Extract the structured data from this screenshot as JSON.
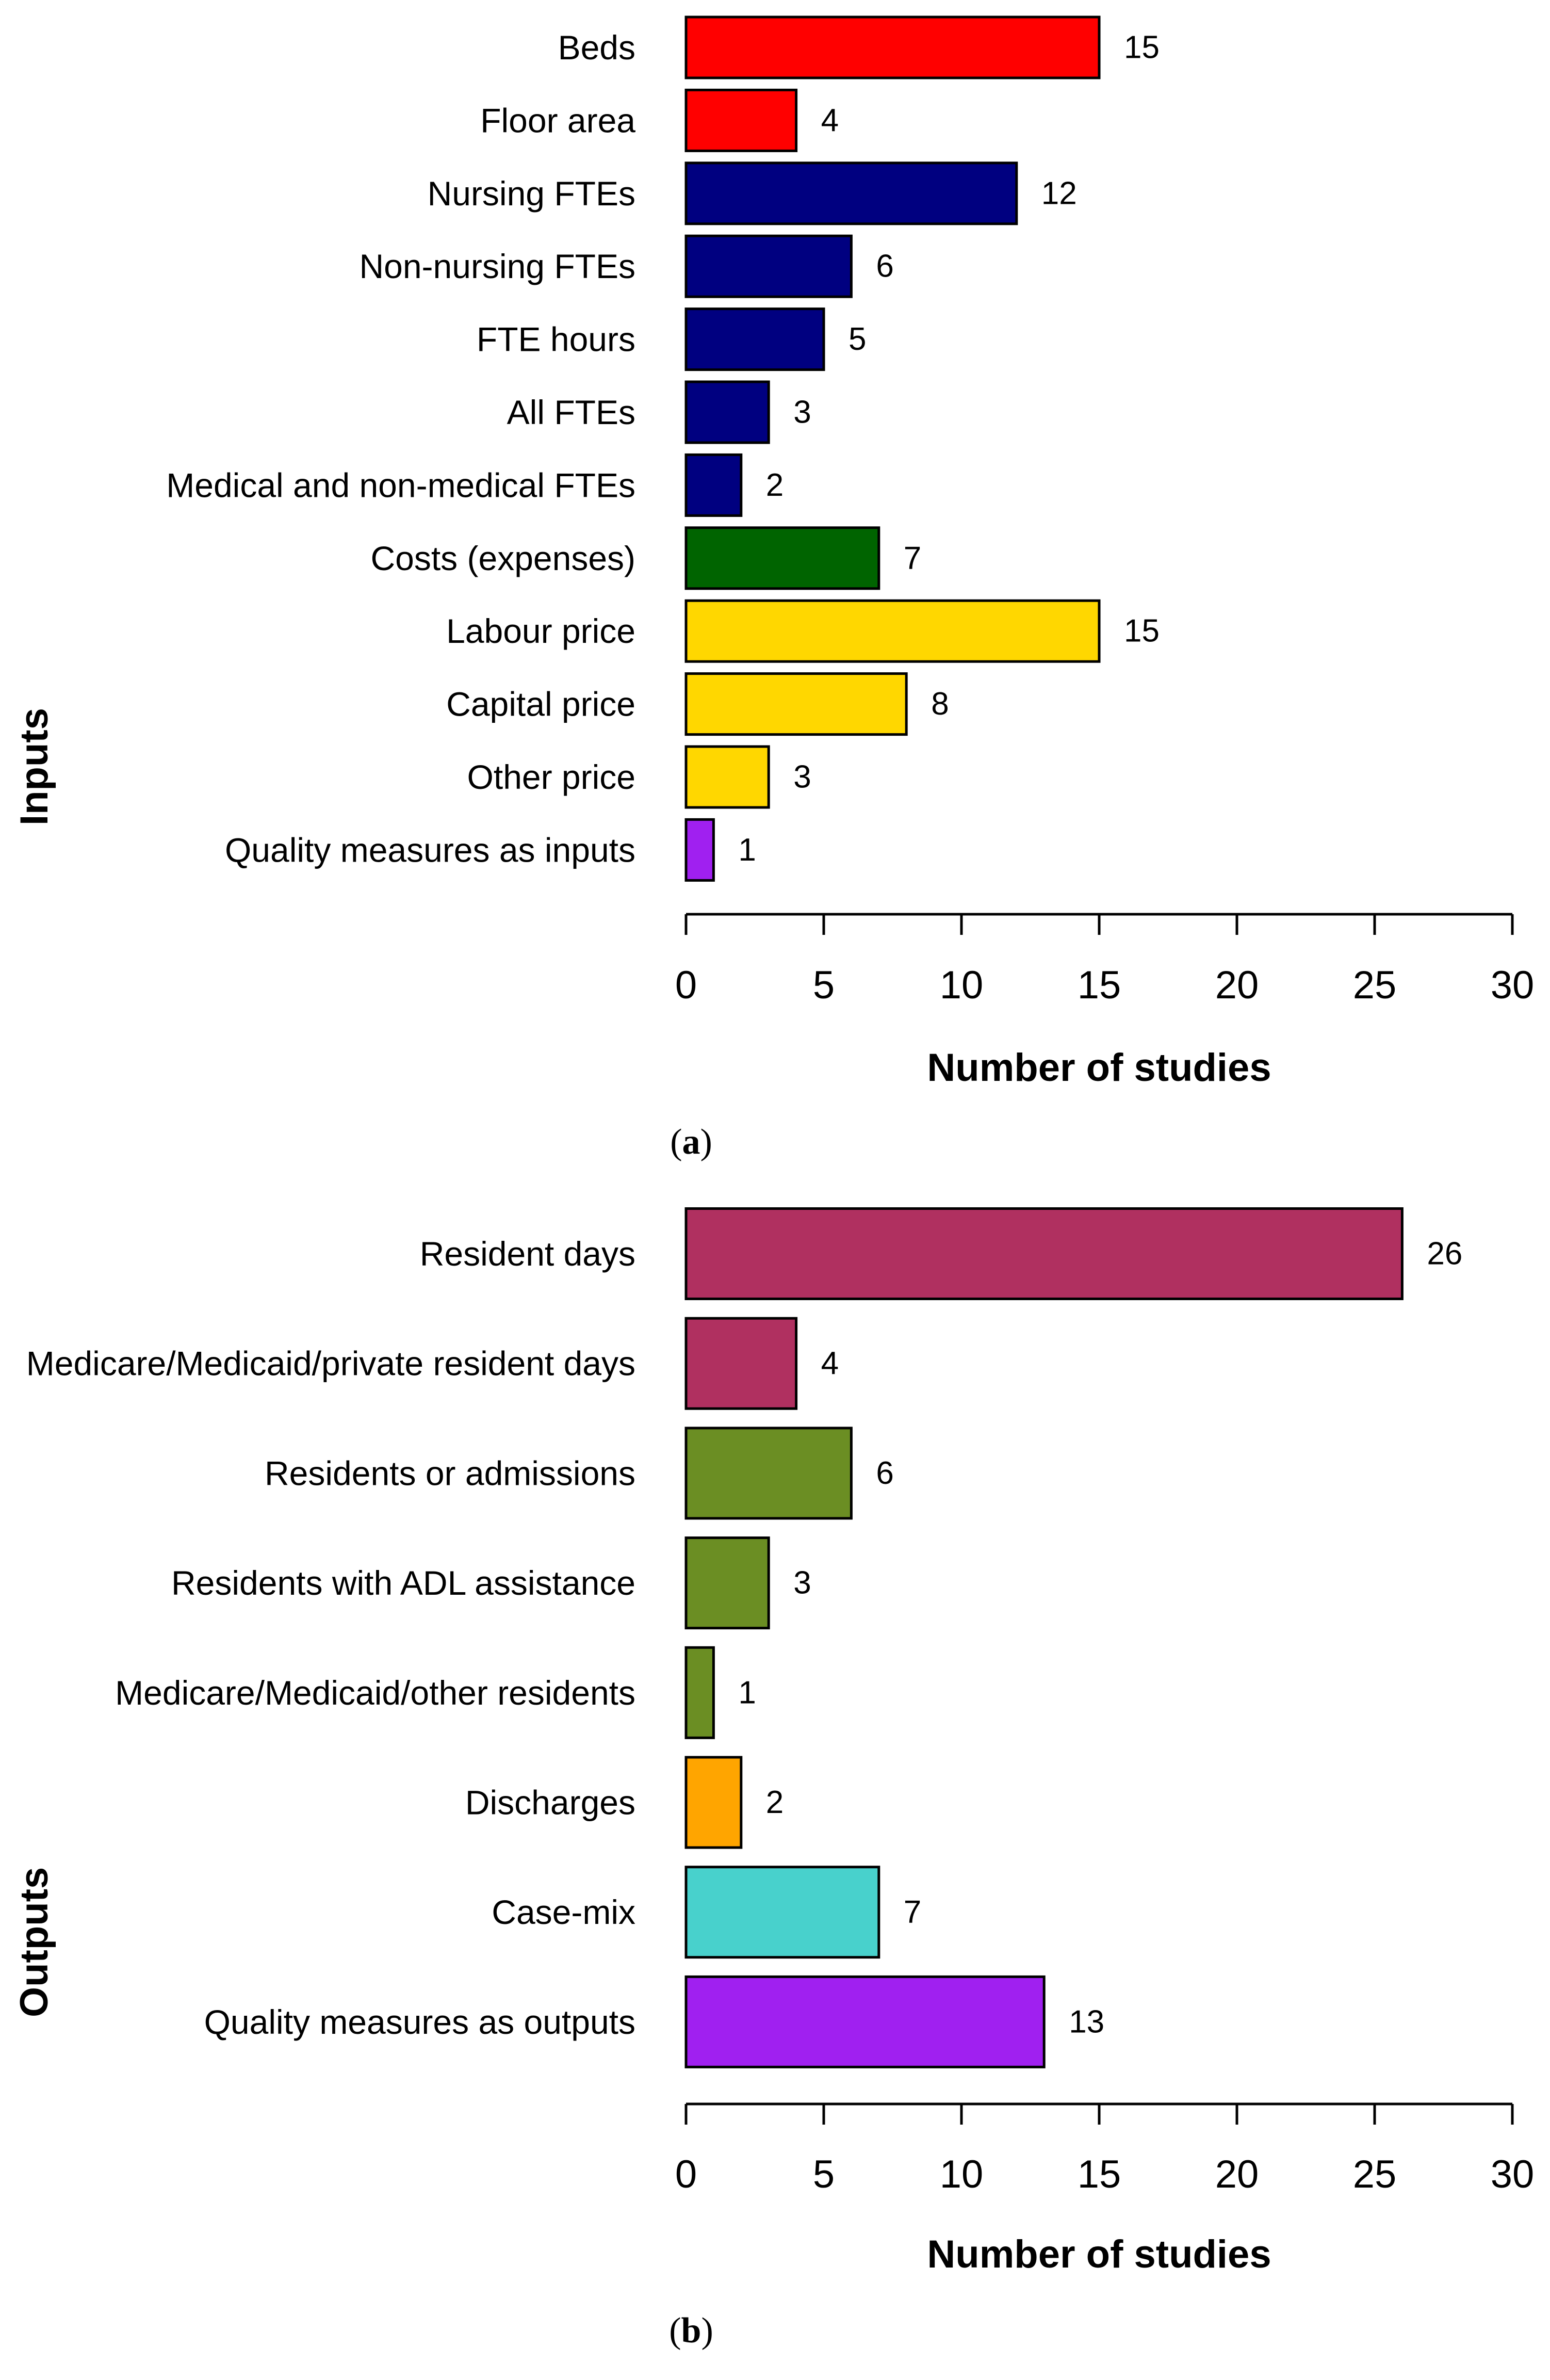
{
  "chart_data": [
    {
      "type": "bar",
      "orientation": "horizontal",
      "panel": "a",
      "side_label": "Inputs",
      "xlabel": "Number of studies",
      "xlim": [
        0,
        30
      ],
      "xticks": [
        0,
        5,
        10,
        15,
        20,
        25,
        30
      ],
      "categories": [
        "Beds",
        "Floor area",
        "Nursing FTEs",
        "Non-nursing FTEs",
        "FTE hours",
        "All FTEs",
        "Medical and non-medical FTEs",
        "Costs (expenses)",
        "Labour price",
        "Capital price",
        "Other price",
        "Quality measures as inputs"
      ],
      "values": [
        15,
        4,
        12,
        6,
        5,
        3,
        2,
        7,
        15,
        8,
        3,
        1
      ],
      "colors": [
        "#ff0000",
        "#ff0000",
        "#000080",
        "#000080",
        "#000080",
        "#000080",
        "#000080",
        "#006400",
        "#ffd700",
        "#ffd700",
        "#ffd700",
        "#a020f0"
      ]
    },
    {
      "type": "bar",
      "orientation": "horizontal",
      "panel": "b",
      "side_label": "Outputs",
      "xlabel": "Number of studies",
      "xlim": [
        0,
        30
      ],
      "xticks": [
        0,
        5,
        10,
        15,
        20,
        25,
        30
      ],
      "categories": [
        "Resident days",
        "Medicare/Medicaid/private resident days",
        "Residents or admissions",
        "Residents with ADL assistance",
        "Medicare/Medicaid/other residents",
        "Discharges",
        "Case-mix",
        "Quality measures as outputs"
      ],
      "values": [
        26,
        4,
        6,
        3,
        1,
        2,
        7,
        13
      ],
      "colors": [
        "#b03060",
        "#b03060",
        "#6b8e23",
        "#6b8e23",
        "#6b8e23",
        "#ffa500",
        "#48d1cc",
        "#a020f0"
      ]
    }
  ],
  "panel_tags": {
    "a": {
      "open": "(",
      "letter": "a",
      "close": ")"
    },
    "b": {
      "open": "(",
      "letter": "b",
      "close": ")"
    }
  }
}
